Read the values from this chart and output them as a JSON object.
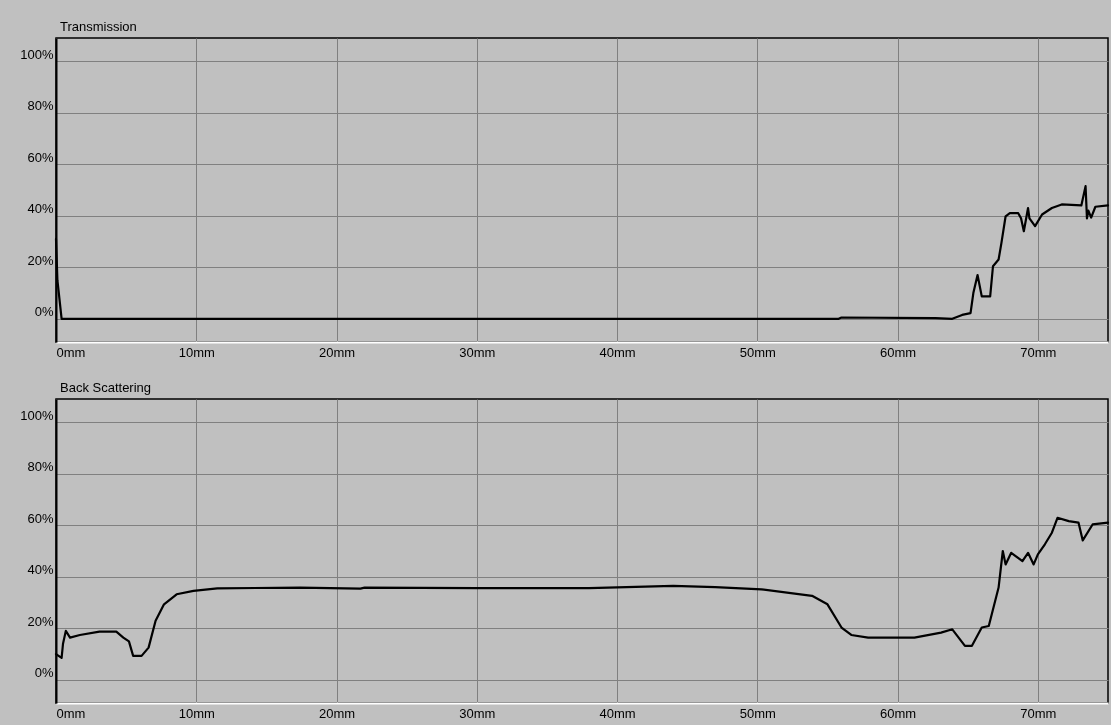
{
  "chart_data": [
    {
      "type": "line",
      "title": "Transmission",
      "xlim": [
        0,
        75
      ],
      "ylim": [
        -9,
        109
      ],
      "grid": true,
      "xticks": [
        {
          "value": 0,
          "label": "0mm"
        },
        {
          "value": 10,
          "label": "10mm"
        },
        {
          "value": 20,
          "label": "20mm"
        },
        {
          "value": 30,
          "label": "30mm"
        },
        {
          "value": 40,
          "label": "40mm"
        },
        {
          "value": 50,
          "label": "50mm"
        },
        {
          "value": 60,
          "label": "60mm"
        },
        {
          "value": 70,
          "label": "70mm"
        }
      ],
      "yticks": [
        {
          "value": 0,
          "label": "0%"
        },
        {
          "value": 20,
          "label": "20%"
        },
        {
          "value": 40,
          "label": "40%"
        },
        {
          "value": 60,
          "label": "60%"
        },
        {
          "value": 80,
          "label": "80%"
        },
        {
          "value": 100,
          "label": "100%"
        }
      ],
      "series": [
        {
          "color": "#000000",
          "x": [
            0,
            0.1,
            0.4,
            30,
            55.8,
            56,
            62.7,
            63.9,
            64.6,
            65.2,
            65.4,
            65.7,
            66.0,
            66.6,
            66.8,
            67.2,
            67.4,
            67.7,
            68.0,
            68.6,
            68.8,
            69.0,
            69.3,
            69.4,
            69.8,
            70.3,
            71.0,
            71.7,
            73.1,
            73.4,
            73.5,
            73.6,
            73.8,
            74.1,
            75.0
          ],
          "values": [
            31,
            15,
            0,
            0,
            0,
            0.5,
            0.3,
            0,
            1.5,
            2.2,
            10,
            17,
            8.7,
            8.7,
            20.4,
            23,
            29.4,
            39.8,
            41,
            41,
            39,
            34,
            43,
            39,
            36,
            40.5,
            43,
            44.4,
            44,
            51.5,
            39,
            42,
            39.3,
            43.5,
            44
          ]
        }
      ]
    },
    {
      "type": "line",
      "title": "Back Scattering",
      "xlim": [
        0,
        75
      ],
      "ylim": [
        -9,
        109
      ],
      "grid": true,
      "xticks": [
        {
          "value": 0,
          "label": "0mm"
        },
        {
          "value": 10,
          "label": "10mm"
        },
        {
          "value": 20,
          "label": "20mm"
        },
        {
          "value": 30,
          "label": "30mm"
        },
        {
          "value": 40,
          "label": "40mm"
        },
        {
          "value": 50,
          "label": "50mm"
        },
        {
          "value": 60,
          "label": "60mm"
        },
        {
          "value": 70,
          "label": "70mm"
        }
      ],
      "yticks": [
        {
          "value": 0,
          "label": "0%"
        },
        {
          "value": 20,
          "label": "20%"
        },
        {
          "value": 40,
          "label": "40%"
        },
        {
          "value": 60,
          "label": "60%"
        },
        {
          "value": 80,
          "label": "80%"
        },
        {
          "value": 100,
          "label": "100%"
        }
      ],
      "series": [
        {
          "color": "#000000",
          "x": [
            0,
            0.4,
            0.5,
            0.7,
            1.0,
            1.7,
            3.1,
            4.3,
            4.8,
            5.2,
            5.5,
            6.1,
            6.6,
            7.1,
            7.7,
            8.6,
            9.8,
            11.5,
            17.4,
            21.7,
            22.0,
            30,
            38,
            42,
            44,
            47,
            50.3,
            53.9,
            55.0,
            56.0,
            56.7,
            57.9,
            61.2,
            63.1,
            63.9,
            64.8,
            65.3,
            66.0,
            66.5,
            67.2,
            67.5,
            67.7,
            68.1,
            68.9,
            69.3,
            69.7,
            70.0,
            70.5,
            71.0,
            71.4,
            72.2,
            72.9,
            73.2,
            73.9,
            75.0
          ],
          "values": [
            10,
            8.5,
            14,
            19,
            16.4,
            17.4,
            18.7,
            18.7,
            16.4,
            14.9,
            9.3,
            9.3,
            12.5,
            22.9,
            29.3,
            33.2,
            34.5,
            35.5,
            35.8,
            35.4,
            35.8,
            35.6,
            35.6,
            36.2,
            36.5,
            36.0,
            35.1,
            32.6,
            29.3,
            20.3,
            17.4,
            16.4,
            16.4,
            18.3,
            19.6,
            13.2,
            13.2,
            20.3,
            20.9,
            35.8,
            50,
            44.8,
            49.3,
            46.1,
            49.3,
            44.8,
            48.7,
            52.6,
            57.1,
            62.9,
            61.6,
            61,
            54.1,
            60.3,
            61
          ]
        }
      ]
    }
  ]
}
